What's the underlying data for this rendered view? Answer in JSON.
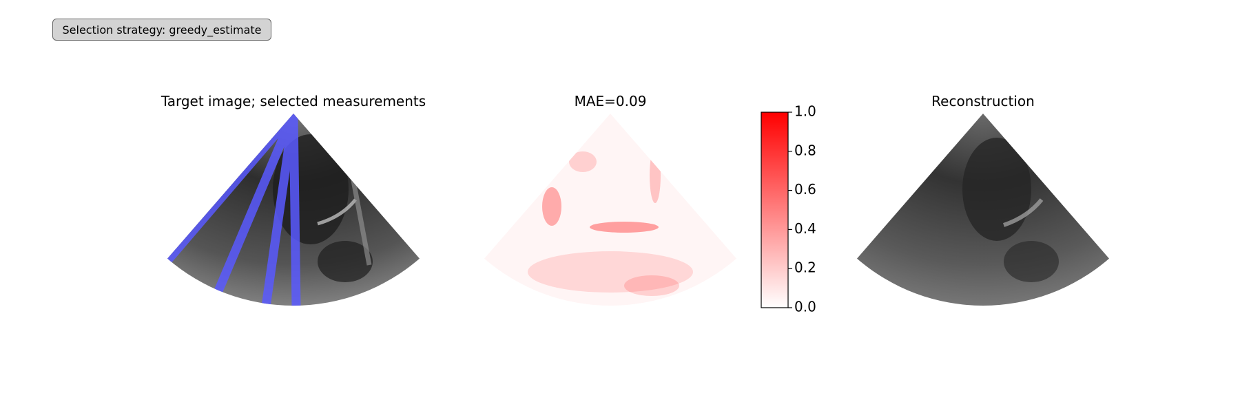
{
  "button": {
    "label": "Selection strategy: greedy_estimate"
  },
  "panels": [
    {
      "title": "Target image; selected measurements"
    },
    {
      "title": "MAE=0.09"
    },
    {
      "title": "Reconstruction"
    }
  ],
  "colorbar": {
    "lim": [
      0,
      1
    ],
    "ticks": [
      {
        "value": 0,
        "label": "0.0"
      },
      0.2,
      0.4,
      0.6,
      0.8,
      {
        "value": 1,
        "label": "1.0"
      }
    ],
    "color": "#ff0000"
  }
}
